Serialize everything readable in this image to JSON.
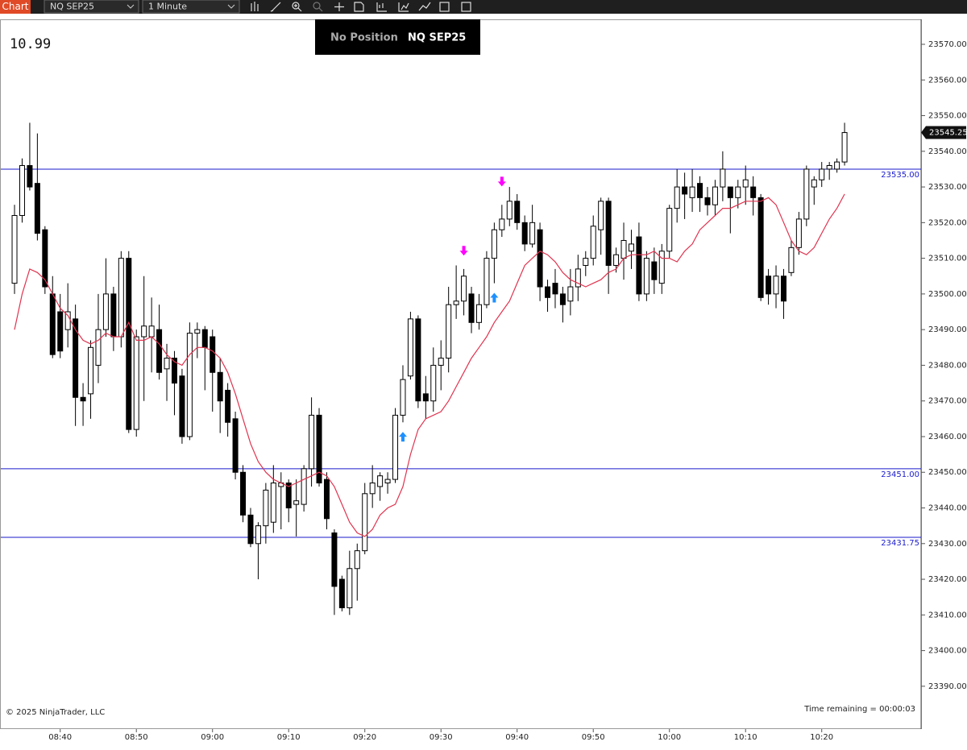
{
  "toolbar": {
    "app": "Chart",
    "instrument": "NQ SEP25",
    "interval": "1 Minute"
  },
  "overlay": {
    "counter": "10.99",
    "position": "No Position",
    "instrument": "NQ SEP25",
    "copyright": "© 2025 NinjaTrader, LLC",
    "timer": "Time remaining = 00:00:03"
  },
  "chart_data": {
    "type": "candlestick",
    "categories": [
      null,
      null,
      null,
      null,
      null,
      null,
      "08:40",
      null,
      null,
      null,
      null,
      null,
      null,
      null,
      null,
      null,
      "08:50",
      null,
      null,
      null,
      null,
      null,
      null,
      null,
      null,
      null,
      "09:00",
      null,
      null,
      null,
      null,
      null,
      null,
      null,
      null,
      null,
      "09:10",
      null,
      null,
      null,
      null,
      null,
      null,
      null,
      null,
      null,
      "09:20",
      null,
      null,
      null,
      null,
      null,
      null,
      null,
      null,
      null,
      "09:30",
      null,
      null,
      null,
      null,
      null,
      null,
      null,
      null,
      null,
      "09:40",
      null,
      null,
      null,
      null,
      null,
      null,
      null,
      null,
      null,
      "09:50",
      null,
      null,
      null,
      null,
      null,
      null,
      null,
      null,
      null,
      "10:00",
      null,
      null,
      null,
      null,
      null,
      null,
      null,
      null,
      null,
      "10:10",
      null,
      null,
      null,
      null,
      null,
      null,
      null,
      null,
      null,
      "10:20",
      null,
      null,
      null
    ],
    "open": [
      23503,
      23522,
      23536,
      23531,
      23518,
      23500,
      23495,
      23490,
      23493,
      23471,
      23472,
      23480,
      23490,
      23500,
      23488,
      23510,
      23462,
      23488,
      23488,
      23490,
      23479,
      23482,
      23477,
      23460,
      23489,
      23490,
      23488,
      23478,
      23473,
      23465,
      23450,
      23438,
      23430,
      23435,
      23436,
      23446,
      23447,
      23441,
      23441,
      23451,
      23466,
      23448,
      23433,
      23420,
      23412,
      23423,
      23428,
      23444,
      23446,
      23447,
      23448,
      23466,
      23477,
      23493,
      23472,
      23470,
      23480,
      23482,
      23497,
      23498,
      23500,
      23492,
      23497,
      23510,
      23518,
      23521,
      23526,
      23520,
      23514,
      23518,
      23502,
      23503,
      23500,
      23498,
      23502,
      23508,
      23510,
      23518,
      23526,
      23508,
      23510,
      23512,
      23516,
      23500,
      23509,
      23503,
      23512,
      23524,
      23530,
      23527,
      23531,
      23527,
      23525,
      23530,
      23530,
      23527,
      23530,
      23530,
      23527,
      23505,
      23500,
      23505,
      23506,
      23513,
      23521,
      23530,
      23532,
      23535,
      23535,
      23537
    ],
    "high": [
      23525,
      23538,
      23548,
      23545,
      23519,
      23505,
      23500,
      23503,
      23497,
      23475,
      23487,
      23500,
      23510,
      23502,
      23512,
      23512,
      23490,
      23505,
      23499,
      23497,
      23486,
      23484,
      23479,
      23492,
      23492,
      23491,
      23490,
      23482,
      23475,
      23467,
      23452,
      23440,
      23436,
      23447,
      23452,
      23450,
      23448,
      23448,
      23452,
      23471,
      23468,
      23450,
      23434,
      23421,
      23428,
      23430,
      23447,
      23452,
      23450,
      23450,
      23468,
      23480,
      23495,
      23494,
      23477,
      23485,
      23487,
      23502,
      23508,
      23507,
      23502,
      23500,
      23512,
      23520,
      23525,
      23530,
      23528,
      23522,
      23525,
      23520,
      23504,
      23507,
      23502,
      23507,
      23511,
      23512,
      23522,
      23527,
      23527,
      23513,
      23520,
      23518,
      23520,
      23512,
      23513,
      23514,
      23525,
      23535,
      23534,
      23535,
      23533,
      23530,
      23532,
      23540,
      23530,
      23532,
      23536,
      23533,
      23528,
      23507,
      23508,
      23507,
      23515,
      23523,
      23536,
      23533,
      23537,
      23537,
      23538,
      23548
    ],
    "low": [
      23500,
      23520,
      23529,
      23515,
      23500,
      23482,
      23482,
      23485,
      23463,
      23463,
      23465,
      23475,
      23488,
      23484,
      23485,
      23461,
      23460,
      23470,
      23478,
      23476,
      23470,
      23466,
      23458,
      23459,
      23482,
      23473,
      23467,
      23461,
      23460,
      23448,
      23436,
      23429,
      23420,
      23430,
      23433,
      23434,
      23436,
      23432,
      23439,
      23446,
      23446,
      23434,
      23410,
      23411,
      23410,
      23414,
      23427,
      23440,
      23442,
      23444,
      23447,
      23464,
      23476,
      23468,
      23465,
      23467,
      23473,
      23478,
      23493,
      23494,
      23489,
      23490,
      23496,
      23503,
      23516,
      23519,
      23518,
      23512,
      23513,
      23498,
      23495,
      23496,
      23492,
      23494,
      23498,
      23505,
      23508,
      23511,
      23500,
      23506,
      23504,
      23507,
      23498,
      23498,
      23500,
      23500,
      23510,
      23520,
      23521,
      23523,
      23523,
      23522,
      23522,
      23526,
      23517,
      23524,
      23525,
      23522,
      23498,
      23497,
      23496,
      23493,
      23505,
      23511,
      23519,
      23525,
      23530,
      23532,
      23534,
      23536
    ],
    "close": [
      23522,
      23536,
      23530,
      23517,
      23502,
      23483,
      23484,
      23495,
      23471,
      23470,
      23485,
      23490,
      23500,
      23488,
      23510,
      23462,
      23488,
      23491,
      23491,
      23478,
      23482,
      23475,
      23460,
      23489,
      23490,
      23485,
      23478,
      23470,
      23464,
      23450,
      23438,
      23430,
      23435,
      23445,
      23447,
      23447,
      23440,
      23442,
      23451,
      23466,
      23447,
      23437,
      23418,
      23412,
      23423,
      23428,
      23444,
      23447,
      23449,
      23448,
      23466,
      23476,
      23493,
      23470,
      23470,
      23480,
      23482,
      23497,
      23498,
      23505,
      23492,
      23497,
      23510,
      23518,
      23521,
      23526,
      23520,
      23514,
      23520,
      23502,
      23499,
      23500,
      23497,
      23502,
      23507,
      23510,
      23519,
      23526,
      23508,
      23511,
      23515,
      23514,
      23500,
      23510,
      23504,
      23512,
      23524,
      23530,
      23528,
      23530,
      23527,
      23525,
      23530,
      23535,
      23527,
      23530,
      23532,
      23527,
      23499,
      23500,
      23505,
      23498,
      23513,
      23521,
      23535,
      23532,
      23535,
      23536,
      23537,
      23545.25
    ],
    "up_color": "#ffffff",
    "down_color": "#000000",
    "wick_color": "#000000",
    "average": {
      "color": "#e0334f",
      "values": [
        23490,
        23500,
        23507,
        23506,
        23504,
        23500,
        23496,
        23494,
        23490,
        23487,
        23486,
        23487,
        23489,
        23488,
        23488,
        23492,
        23487,
        23487,
        23488,
        23486,
        23483,
        23481,
        23480,
        23483,
        23485,
        23485,
        23484,
        23482,
        23478,
        23472,
        23465,
        23458,
        23453,
        23450,
        23448,
        23447,
        23446,
        23447,
        23448,
        23449,
        23450,
        23449,
        23446,
        23441,
        23436,
        23433,
        23432,
        23434,
        23438,
        23440,
        23441,
        23446,
        23455,
        23462,
        23465,
        23466,
        23467,
        23470,
        23474,
        23478,
        23482,
        23485,
        23488,
        23492,
        23495,
        23498,
        23503,
        23508,
        23510,
        23512,
        23511,
        23509,
        23506,
        23504,
        23503,
        23502,
        23503,
        23504,
        23506,
        23507,
        23510,
        23511,
        23511,
        23511,
        23512,
        23510,
        23510,
        23509,
        23512,
        23514,
        23518,
        23520,
        23522,
        23524,
        23524,
        23525,
        23526,
        23526,
        23526,
        23527,
        23525,
        23520,
        23515,
        23512,
        23511,
        23513,
        23517,
        23521,
        23524,
        23528
      ]
    },
    "levels_color": "#1a1acc",
    "levels": [
      {
        "value": 23535,
        "label": "23535.00"
      },
      {
        "value": 23451,
        "label": "23451.00"
      },
      {
        "value": 23431.75,
        "label": "23431.75"
      }
    ],
    "last_price": {
      "value": 23545.25,
      "label": "23545.25"
    },
    "markers": [
      {
        "x": 51,
        "value": 23462,
        "side": "buy",
        "color": "#1e90ff"
      },
      {
        "x": 63,
        "value": 23501,
        "side": "buy",
        "color": "#1e90ff"
      },
      {
        "x": 59,
        "value": 23507.6,
        "side": "sell",
        "color": "#ff00ff"
      },
      {
        "x": 64,
        "value": 23527,
        "side": "sell",
        "color": "#ff00ff"
      }
    ],
    "ylim": [
      23378,
      23577
    ],
    "yticks": [
      {
        "value": 23570,
        "label": "23570.00"
      },
      {
        "value": 23560,
        "label": "23560.00"
      },
      {
        "value": 23550,
        "label": "23550.00"
      },
      {
        "value": 23540,
        "label": "23540.00"
      },
      {
        "value": 23530,
        "label": "23530.00"
      },
      {
        "value": 23520,
        "label": "23520.00"
      },
      {
        "value": 23510,
        "label": "23510.00"
      },
      {
        "value": 23500,
        "label": "23500.00"
      },
      {
        "value": 23490,
        "label": "23490.00"
      },
      {
        "value": 23480,
        "label": "23480.00"
      },
      {
        "value": 23470,
        "label": "23470.00"
      },
      {
        "value": 23460,
        "label": "23460.00"
      },
      {
        "value": 23450,
        "label": "23450.00"
      },
      {
        "value": 23440,
        "label": "23440.00"
      },
      {
        "value": 23430,
        "label": "23430.00"
      },
      {
        "value": 23420,
        "label": "23420.00"
      },
      {
        "value": 23410,
        "label": "23410.00"
      },
      {
        "value": 23400,
        "label": "23400.00"
      },
      {
        "value": 23390,
        "label": "23390.00"
      }
    ]
  }
}
